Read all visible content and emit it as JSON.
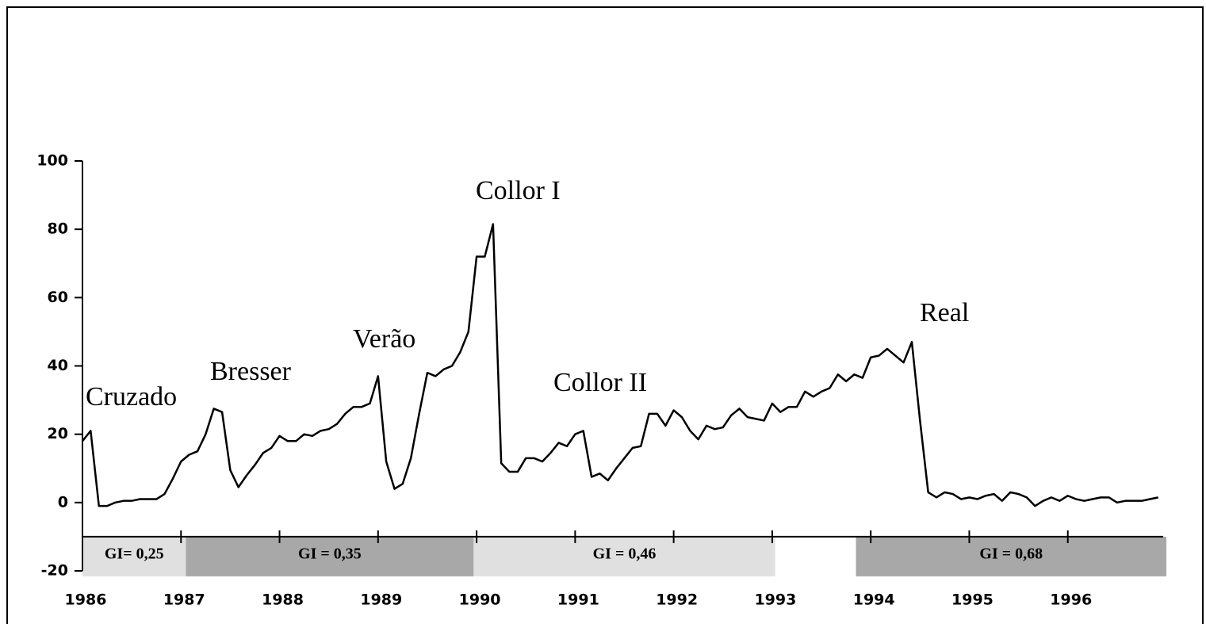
{
  "chart_data": {
    "type": "line",
    "x": [
      1986.0,
      1986.083,
      1986.167,
      1986.25,
      1986.333,
      1986.417,
      1986.5,
      1986.583,
      1986.667,
      1986.75,
      1986.833,
      1986.917,
      1987.0,
      1987.083,
      1987.167,
      1987.25,
      1987.333,
      1987.417,
      1987.5,
      1987.583,
      1987.667,
      1987.75,
      1987.833,
      1987.917,
      1988.0,
      1988.083,
      1988.167,
      1988.25,
      1988.333,
      1988.417,
      1988.5,
      1988.583,
      1988.667,
      1988.75,
      1988.833,
      1988.917,
      1989.0,
      1989.083,
      1989.167,
      1989.25,
      1989.333,
      1989.417,
      1989.5,
      1989.583,
      1989.667,
      1989.75,
      1989.833,
      1989.917,
      1990.0,
      1990.083,
      1990.167,
      1990.25,
      1990.333,
      1990.417,
      1990.5,
      1990.583,
      1990.667,
      1990.75,
      1990.833,
      1990.917,
      1991.0,
      1991.083,
      1991.167,
      1991.25,
      1991.333,
      1991.417,
      1991.5,
      1991.583,
      1991.667,
      1991.75,
      1991.833,
      1991.917,
      1992.0,
      1992.083,
      1992.167,
      1992.25,
      1992.333,
      1992.417,
      1992.5,
      1992.583,
      1992.667,
      1992.75,
      1992.833,
      1992.917,
      1993.0,
      1993.083,
      1993.167,
      1993.25,
      1993.333,
      1993.417,
      1993.5,
      1993.583,
      1993.667,
      1993.75,
      1993.833,
      1993.917,
      1994.0,
      1994.083,
      1994.167,
      1994.25,
      1994.333,
      1994.417,
      1994.5,
      1994.583,
      1994.667,
      1994.75,
      1994.833,
      1994.917,
      1995.0,
      1995.083,
      1995.167,
      1995.25,
      1995.333,
      1995.417,
      1995.5,
      1995.583,
      1995.667,
      1995.75,
      1995.833,
      1995.917,
      1996.0,
      1996.083,
      1996.167,
      1996.25,
      1996.333,
      1996.417,
      1996.5,
      1996.583,
      1996.667,
      1996.75,
      1996.833,
      1996.917
    ],
    "series": [
      {
        "color": "#000000",
        "values": [
          18,
          21,
          -1,
          -1,
          0,
          0.5,
          0.5,
          1,
          1,
          1,
          2.5,
          7,
          12,
          14,
          15,
          20,
          27.5,
          26.5,
          9.5,
          4.5,
          8,
          11,
          14.5,
          16,
          19.5,
          18,
          18,
          20,
          19.5,
          21,
          21.5,
          23,
          26,
          28,
          28,
          29,
          37,
          12,
          4,
          5.5,
          13,
          26,
          38,
          37,
          39,
          40,
          44,
          50,
          72,
          72,
          81.5,
          11.5,
          9,
          9,
          13,
          13,
          12,
          14.5,
          17.5,
          16.5,
          20,
          21,
          7.5,
          8.5,
          6.5,
          10,
          13,
          16,
          16.5,
          26,
          26,
          22.5,
          27,
          25,
          21,
          18.5,
          22.5,
          21.5,
          22,
          25.5,
          27.5,
          25,
          24.5,
          24,
          29,
          26.5,
          28,
          28,
          32.5,
          31,
          32.5,
          33.5,
          37.5,
          35.5,
          37.5,
          36.5,
          42.5,
          43,
          45,
          43,
          41,
          47,
          24,
          3,
          1.5,
          3,
          2.5,
          1,
          1.5,
          1,
          2,
          2.5,
          0.5,
          3,
          2.5,
          1.5,
          -1,
          0.5,
          1.5,
          0.5,
          2,
          1,
          0.5,
          1,
          1.5,
          1.5,
          0,
          0.5,
          0.5,
          0.5,
          1,
          1.5
        ]
      }
    ],
    "xlim": [
      1986,
      1997
    ],
    "xticks": [
      1986,
      1987,
      1988,
      1989,
      1990,
      1991,
      1992,
      1993,
      1994,
      1995,
      1996
    ],
    "ylim": [
      -20,
      100
    ],
    "yticks": [
      -20,
      0,
      20,
      40,
      60,
      80,
      100
    ],
    "x_axis_at": -10,
    "annotations": [
      "Cruzado",
      "Bresser",
      "Verão",
      "Collor I",
      "Collor II",
      "Real"
    ],
    "bands": [
      {
        "label": "GI= 0,25",
        "start": 1986,
        "end": 1987.05,
        "color": "#e0e0e0"
      },
      {
        "label": "GI =  0,35",
        "start": 1987.05,
        "end": 1989.97,
        "color": "#a8a8a8"
      },
      {
        "label": "GI = 0,46",
        "start": 1989.97,
        "end": 1993.03,
        "color": "#e0e0e0"
      },
      {
        "label": "GI = 0,68",
        "start": 1993.85,
        "end": 1997,
        "color": "#a8a8a8"
      }
    ]
  }
}
